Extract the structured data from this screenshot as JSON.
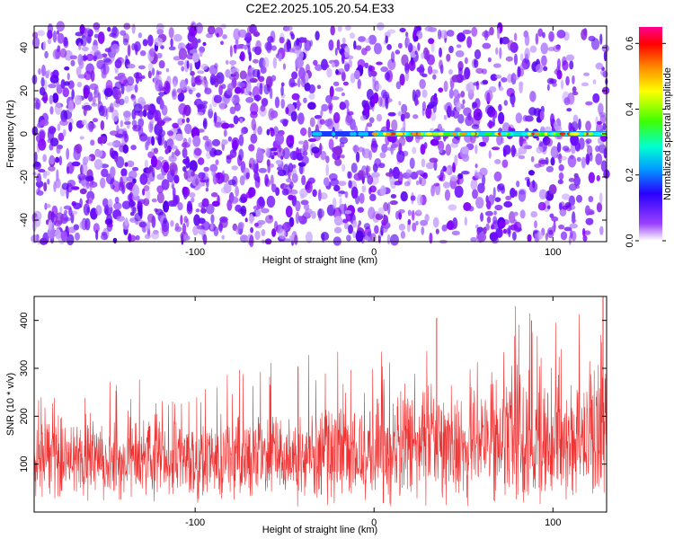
{
  "title": "C2E2.2025.105.20.54.E33",
  "colors": {
    "snr_line": "#ee3333",
    "axis": "#000000",
    "background": "#ffffff",
    "colormap": [
      "#ffffff",
      "#8000ff",
      "#0000ff",
      "#00ffff",
      "#00ff00",
      "#ffff00",
      "#ff8000",
      "#ff0000",
      "#ff0080"
    ]
  },
  "chart_data": [
    {
      "type": "heatmap",
      "xlabel": "Height of straight line (km)",
      "ylabel": "Frequency (Hz)",
      "xlim": [
        -190,
        130
      ],
      "ylim": [
        -50,
        50
      ],
      "xticks": [
        -100,
        0,
        100
      ],
      "yticks": [
        -40,
        -20,
        0,
        20,
        40
      ],
      "colorbar": {
        "label": "Normalized spectral amplitude",
        "range": [
          0,
          0.65
        ],
        "ticks": [
          "0.0",
          "0.2",
          "0.4",
          "0.6"
        ]
      },
      "features": {
        "horizontal_band": {
          "frequency": 0,
          "x_start": -35,
          "x_end": 130,
          "peak_amplitude": 0.6
        },
        "background_noise_amplitude": 0.05
      }
    },
    {
      "type": "line",
      "xlabel": "Height of straight line (km)",
      "ylabel": "SNR (10 * v/v)",
      "xlim": [
        -190,
        130
      ],
      "ylim": [
        0,
        450
      ],
      "xticks": [
        -100,
        0,
        100
      ],
      "yticks": [
        100,
        200,
        300,
        400
      ],
      "trend": {
        "x": [
          -190,
          -100,
          0,
          60,
          130
        ],
        "mean": [
          110,
          108,
          130,
          150,
          165
        ],
        "spread": [
          80,
          80,
          110,
          130,
          140
        ]
      },
      "notable_peaks": [
        {
          "x": 35,
          "y": 405
        },
        {
          "x": 88,
          "y": 400
        },
        {
          "x": 128,
          "y": 450
        }
      ]
    }
  ]
}
